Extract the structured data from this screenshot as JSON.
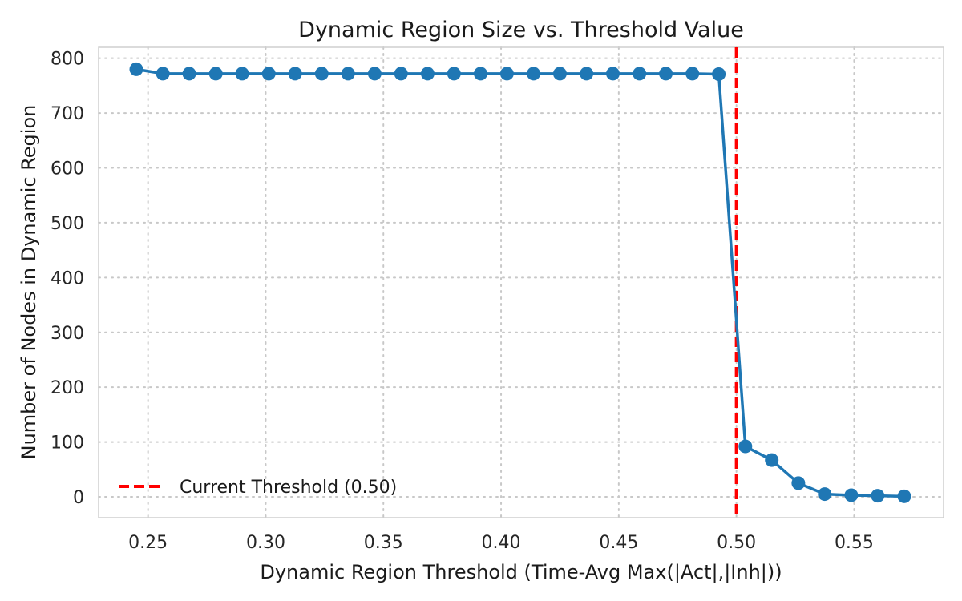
{
  "chart_data": {
    "type": "line",
    "title": "Dynamic Region Size vs. Threshold Value",
    "xlabel": "Dynamic Region Threshold (Time-Avg Max(|Act|,|Inh|))",
    "ylabel": "Number of Nodes in Dynamic Region",
    "xlim": [
      0.229,
      0.588
    ],
    "ylim": [
      -38,
      820
    ],
    "x_ticks": [
      0.25,
      0.3,
      0.35,
      0.4,
      0.45,
      0.5,
      0.55
    ],
    "x_tick_labels": [
      "0.25",
      "0.30",
      "0.35",
      "0.40",
      "0.45",
      "0.50",
      "0.55"
    ],
    "y_ticks": [
      0,
      100,
      200,
      300,
      400,
      500,
      600,
      700,
      800
    ],
    "y_tick_labels": [
      "0",
      "100",
      "200",
      "300",
      "400",
      "500",
      "600",
      "700",
      "800"
    ],
    "grid": true,
    "series": [
      {
        "x": [
          0.245,
          0.2563,
          0.2675,
          0.2788,
          0.29,
          0.3013,
          0.3125,
          0.3238,
          0.335,
          0.3463,
          0.3575,
          0.3688,
          0.38,
          0.3913,
          0.4025,
          0.4138,
          0.425,
          0.4363,
          0.4475,
          0.4588,
          0.47,
          0.4813,
          0.4925,
          0.5038,
          0.515,
          0.5263,
          0.5375,
          0.5488,
          0.56,
          0.5713
        ],
        "y": [
          780,
          772,
          772,
          772,
          772,
          772,
          772,
          772,
          772,
          772,
          772,
          772,
          772,
          772,
          772,
          772,
          772,
          772,
          772,
          772,
          772,
          772,
          771,
          92,
          67,
          25,
          5,
          3,
          2,
          1
        ],
        "color": "#1f77b4"
      }
    ],
    "reference_lines": [
      {
        "orientation": "vertical",
        "x": 0.5,
        "label": "Current Threshold (0.50)",
        "color": "#ff0000",
        "style": "dashed"
      }
    ],
    "legend": {
      "position": "lower-left",
      "entries": [
        "Current Threshold (0.50)"
      ]
    }
  }
}
